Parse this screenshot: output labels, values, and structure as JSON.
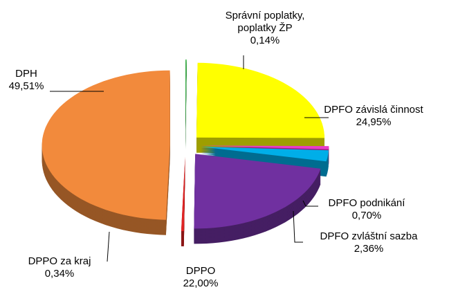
{
  "chart_data": {
    "type": "pie",
    "categories": [
      "Správní poplatky, poplatky ŽP",
      "DPFO závislá činnost",
      "DPFO podnikání",
      "DPFO zvláštní sazba",
      "DPPO",
      "DPPO za kraj",
      "DPH"
    ],
    "values": [
      0.14,
      24.95,
      0.7,
      2.36,
      22.0,
      0.34,
      49.51
    ],
    "value_labels": [
      "0,14%",
      "24,95%",
      "0,70%",
      "2,36%",
      "22,00%",
      "0,34%",
      "49,51%"
    ],
    "colors": [
      "#3cb54a",
      "#ffff00",
      "#e83cc8",
      "#00aee8",
      "#7030a0",
      "#e02424",
      "#f28a3c"
    ]
  }
}
